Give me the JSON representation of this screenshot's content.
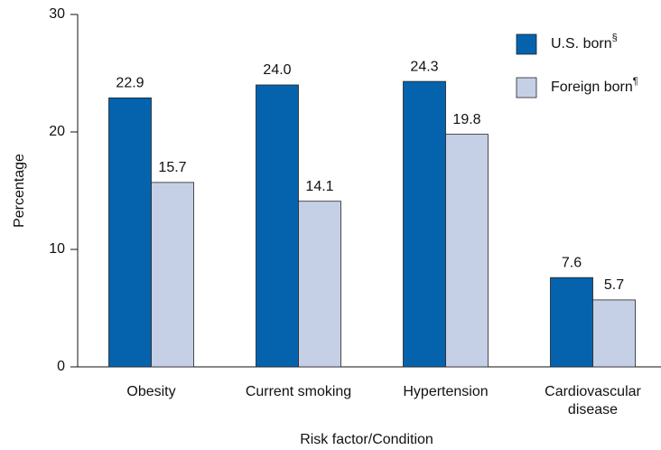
{
  "chart_data": {
    "type": "bar",
    "x_label": "Risk factor/Condition",
    "y_label": "Percentage",
    "categories": [
      "Obesity",
      "Current smoking",
      "Hypertension",
      "Cardiovascular disease"
    ],
    "series": [
      {
        "name": "U.S. born",
        "note": "§",
        "color": "#0563ad",
        "values": [
          22.9,
          24.0,
          24.3,
          7.6
        ],
        "value_labels": [
          "22.9",
          "24.0",
          "24.3",
          "7.6"
        ]
      },
      {
        "name": "Foreign born",
        "note": "¶",
        "color": "#c5d0e7",
        "values": [
          15.7,
          14.1,
          19.8,
          5.7
        ],
        "value_labels": [
          "15.7",
          "14.1",
          "19.8",
          "5.7"
        ]
      }
    ],
    "ylim": [
      0,
      30
    ],
    "yticks": [
      0,
      10,
      20,
      30
    ],
    "grid": false
  }
}
